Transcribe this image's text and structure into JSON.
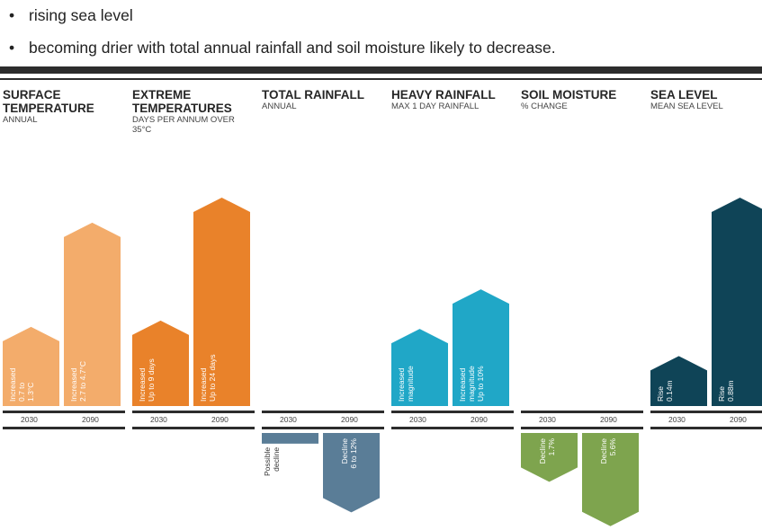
{
  "bullets": [
    "rising sea level",
    "becoming drier with total annual rainfall and soil moisture likely to decrease."
  ],
  "colors": {
    "surface_temperature": "#f3ac6b",
    "extreme_temperatures": "#e9822a",
    "total_rainfall": "#5a7d97",
    "heavy_rainfall": "#20a7c7",
    "soil_moisture": "#7ea44e",
    "sea_level": "#0f4457",
    "band": "#2c2c2c"
  },
  "chart_data": [
    {
      "type": "bar",
      "title": "SURFACE TEMPERATURE",
      "subtitle": "ANNUAL",
      "categories": [
        "2030",
        "2090"
      ],
      "labels": [
        [
          "Increased",
          "0.7 to",
          "1.3°C"
        ],
        [
          "Increased",
          "2.7 to 4.7°C"
        ]
      ],
      "values": [
        0.38,
        0.88
      ]
    },
    {
      "type": "bar",
      "title": "EXTREME TEMPERATURES",
      "subtitle": "DAYS PER ANNUM OVER 35°C",
      "categories": [
        "2030",
        "2090"
      ],
      "labels": [
        [
          "Increased",
          "Up to 9 days"
        ],
        [
          "Increased",
          "Up to 24 days"
        ]
      ],
      "values": [
        0.41,
        1.0
      ]
    },
    {
      "type": "bar",
      "title": "TOTAL RAINFALL",
      "subtitle": "ANNUAL",
      "categories": [
        "2030",
        "2090"
      ],
      "labels": [
        [
          "Possible",
          "decline"
        ],
        [
          "Decline",
          "6 to 12%"
        ]
      ],
      "values": [
        -0.07,
        -0.52
      ]
    },
    {
      "type": "bar",
      "title": "HEAVY RAINFALL",
      "subtitle": "MAX 1 DAY RAINFALL",
      "categories": [
        "2030",
        "2090"
      ],
      "labels": [
        [
          "Increased",
          "magnitude"
        ],
        [
          "Increased",
          "magnitude",
          "Up to 10%"
        ]
      ],
      "values": [
        0.37,
        0.56
      ]
    },
    {
      "type": "bar",
      "title": "SOIL MOISTURE",
      "subtitle": "% CHANGE",
      "categories": [
        "2030",
        "2090"
      ],
      "labels": [
        [
          "Decline",
          "1.7%"
        ],
        [
          "Decline",
          "5.6%"
        ]
      ],
      "values": [
        -0.32,
        -0.61
      ]
    },
    {
      "type": "bar",
      "title": "SEA LEVEL",
      "subtitle": "MEAN SEA LEVEL",
      "categories": [
        "2030",
        "2090"
      ],
      "labels": [
        [
          "Rise",
          "0.14m"
        ],
        [
          "Rise",
          "0.88m"
        ]
      ],
      "values": [
        0.24,
        1.0
      ]
    }
  ]
}
